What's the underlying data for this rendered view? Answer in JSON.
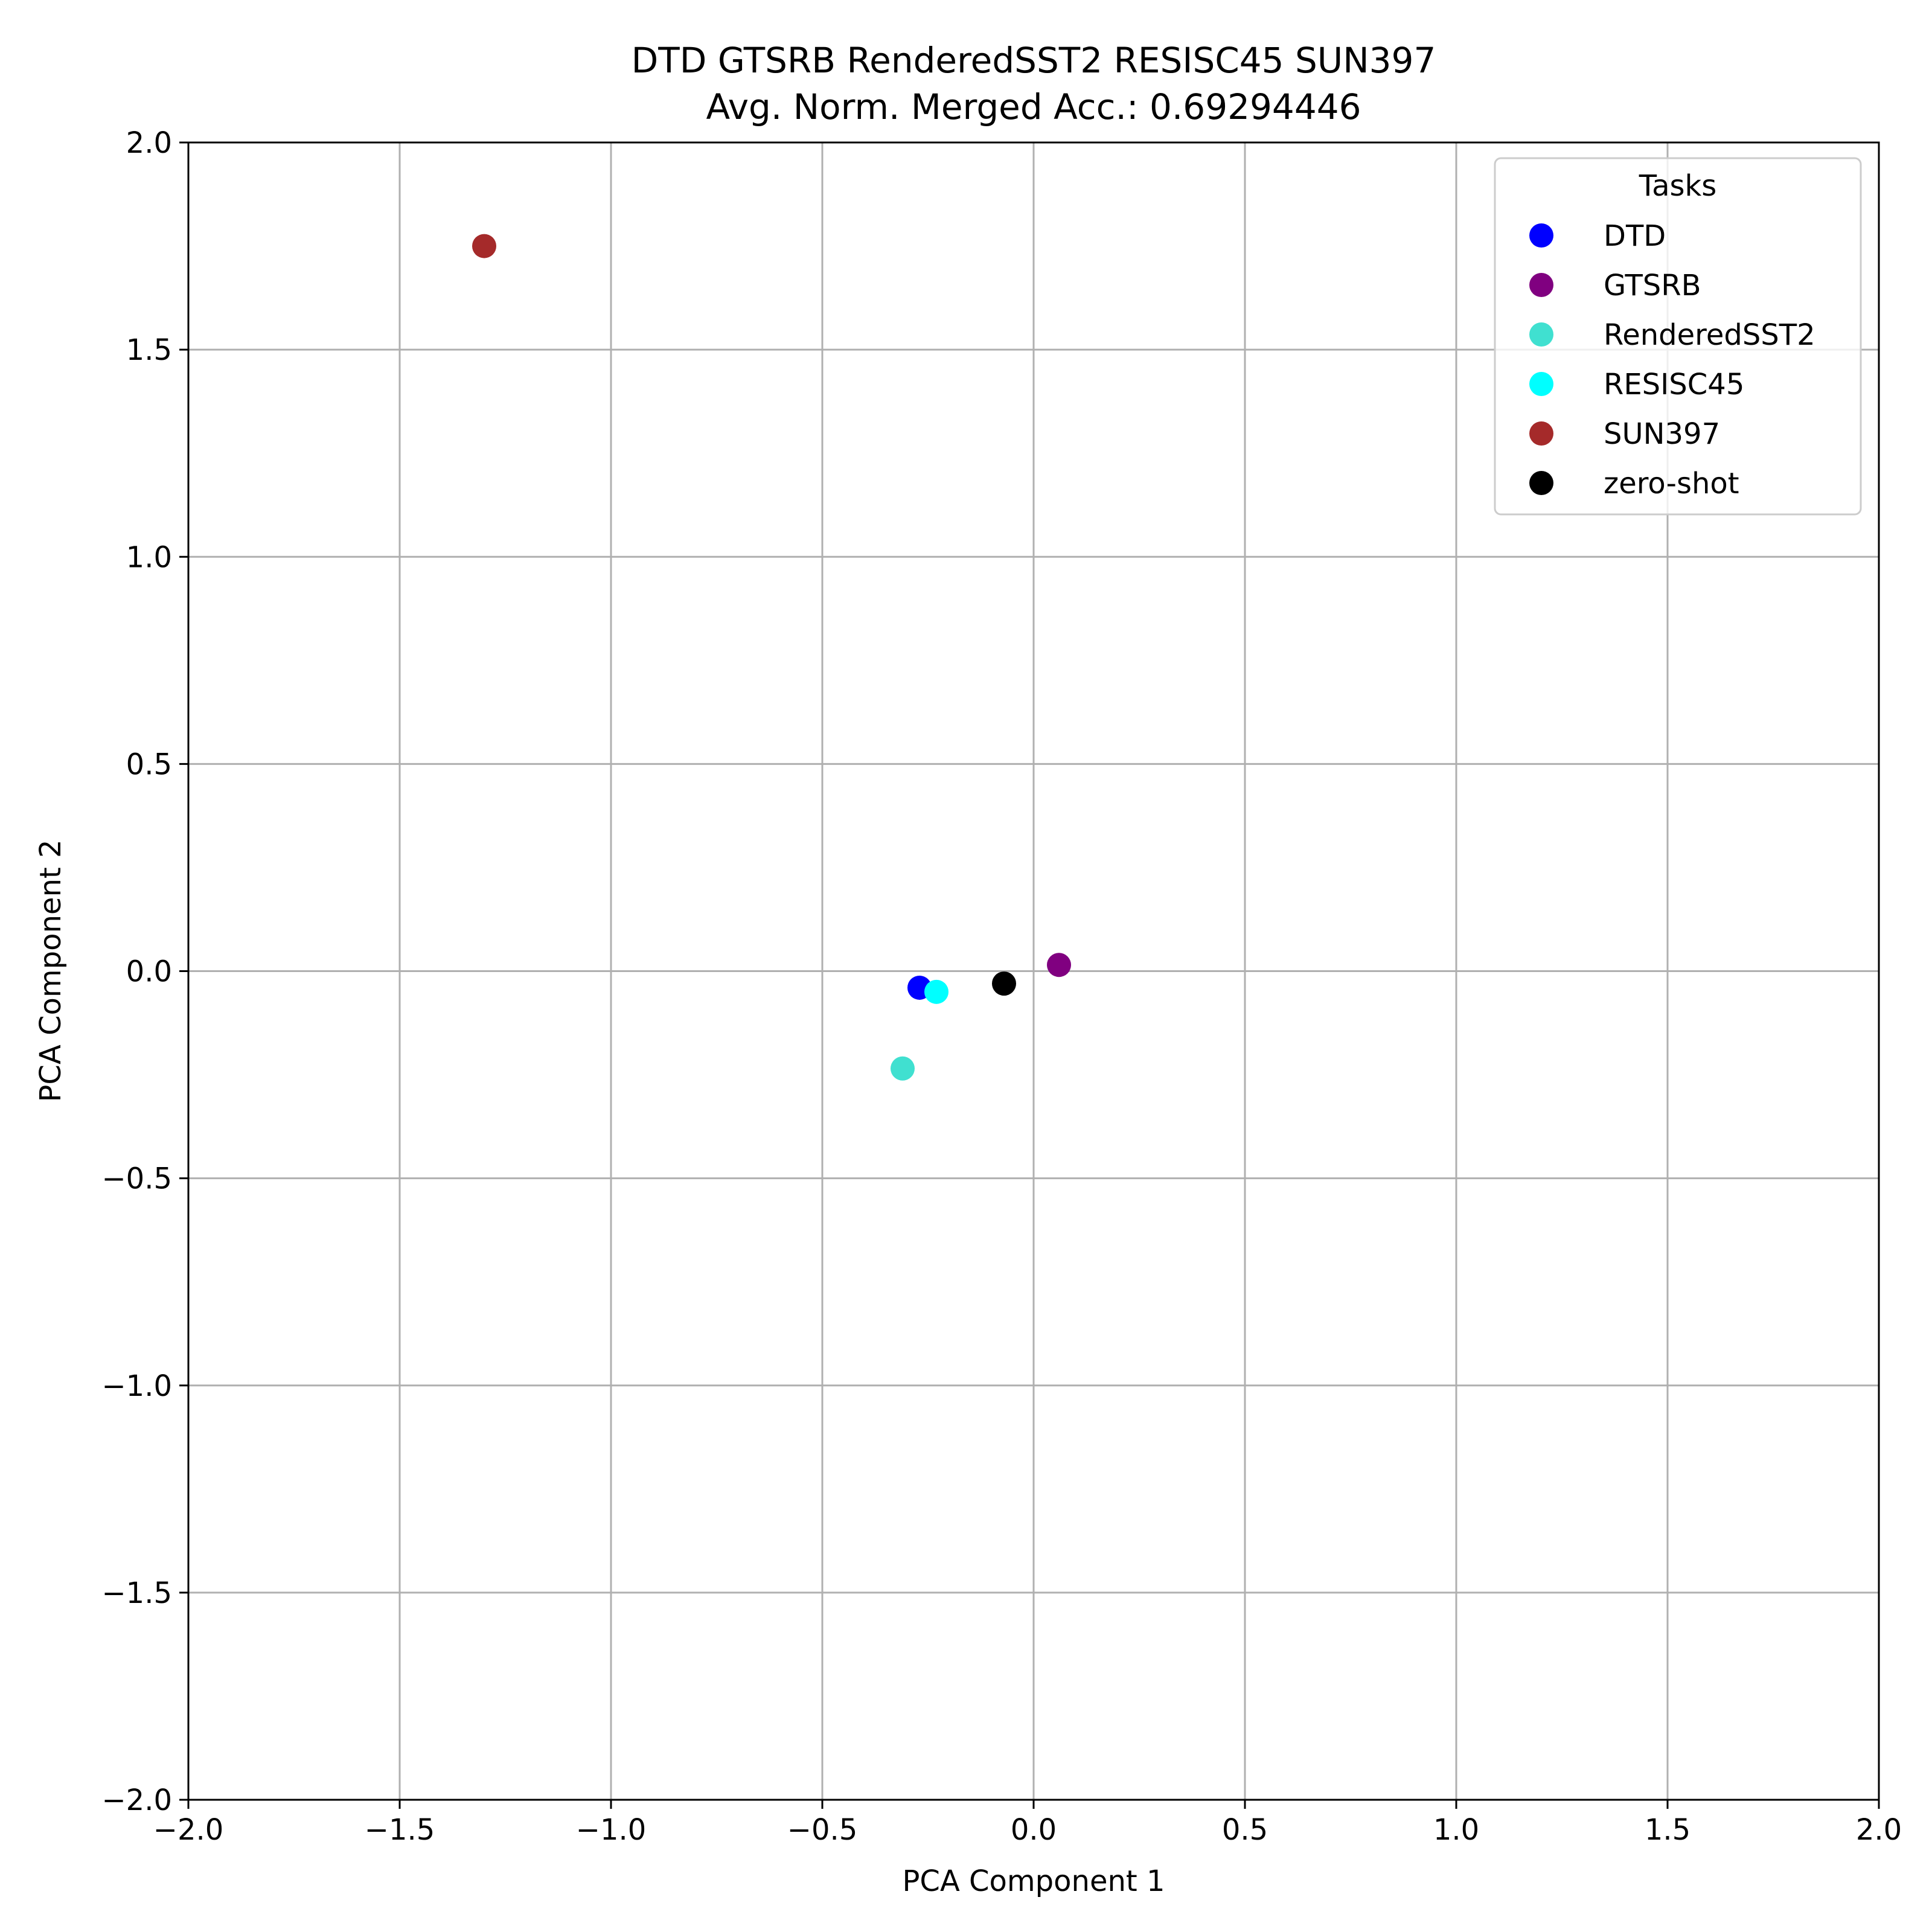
{
  "chart_data": {
    "type": "scatter",
    "title_lines": [
      "DTD GTSRB RenderedSST2 RESISC45 SUN397",
      "Avg. Norm. Merged Acc.: 0.69294446"
    ],
    "xlabel": "PCA Component 1",
    "ylabel": "PCA Component 2",
    "xlim": [
      -2.0,
      2.0
    ],
    "ylim": [
      -2.0,
      2.0
    ],
    "xticks": [
      -2.0,
      -1.5,
      -1.0,
      -0.5,
      0.0,
      0.5,
      1.0,
      1.5,
      2.0
    ],
    "yticks": [
      -2.0,
      -1.5,
      -1.0,
      -0.5,
      0.0,
      0.5,
      1.0,
      1.5,
      2.0
    ],
    "xtick_labels": [
      "−2.0",
      "−1.5",
      "−1.0",
      "−0.5",
      "0.0",
      "0.5",
      "1.0",
      "1.5",
      "2.0"
    ],
    "ytick_labels": [
      "−2.0",
      "−1.5",
      "−1.0",
      "−0.5",
      "0.0",
      "0.5",
      "1.0",
      "1.5",
      "2.0"
    ],
    "grid": true,
    "legend": {
      "title": "Tasks",
      "placement": "top-right"
    },
    "series": [
      {
        "name": "DTD",
        "color": "#0000ff",
        "points": [
          [
            -0.27,
            -0.04
          ]
        ]
      },
      {
        "name": "GTSRB",
        "color": "#800080",
        "points": [
          [
            0.06,
            0.015
          ]
        ]
      },
      {
        "name": "RenderedSST2",
        "color": "#40e0d0",
        "points": [
          [
            -0.31,
            -0.235
          ]
        ]
      },
      {
        "name": "RESISC45",
        "color": "#00ffff",
        "points": [
          [
            -0.23,
            -0.05
          ]
        ]
      },
      {
        "name": "SUN397",
        "color": "#a52a2a",
        "points": [
          [
            -1.3,
            1.75
          ]
        ]
      },
      {
        "name": "zero-shot",
        "color": "#000000",
        "points": [
          [
            -0.07,
            -0.03
          ]
        ]
      }
    ]
  }
}
